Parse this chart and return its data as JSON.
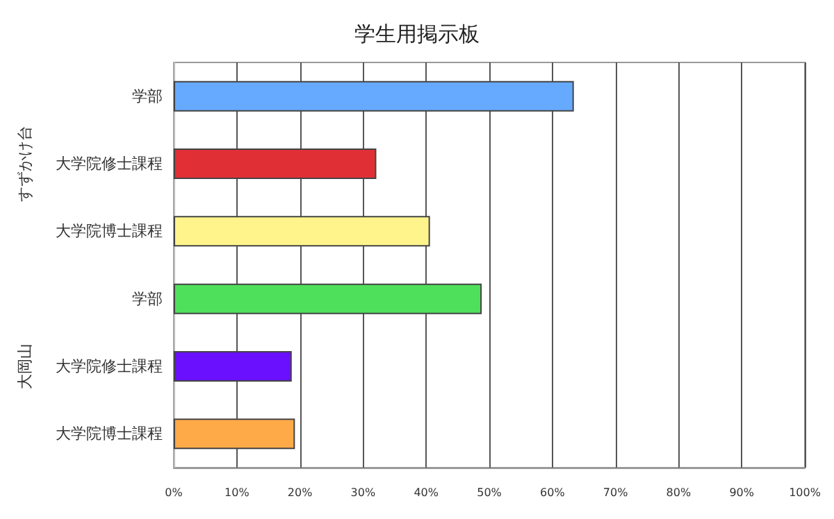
{
  "chart_data": {
    "type": "bar",
    "orientation": "horizontal",
    "title": "学生用掲示板",
    "categories": [
      "学部",
      "大学院修士課程",
      "大学院博士課程",
      "学部",
      "大学院修士課程",
      "大学院博士課程"
    ],
    "values": [
      63.4,
      32.1,
      40.6,
      48.8,
      18.7,
      19.2
    ],
    "colors": [
      "#66aaff",
      "#e03036",
      "#fff48c",
      "#4ee05a",
      "#6a10ff",
      "#ffaa48"
    ],
    "xlim": [
      0,
      100
    ],
    "xticks": [
      {
        "value": 0,
        "label": "0%"
      },
      {
        "value": 10,
        "label": "10%"
      },
      {
        "value": 20,
        "label": "20%"
      },
      {
        "value": 30,
        "label": "30%"
      },
      {
        "value": 40,
        "label": "40%"
      },
      {
        "value": 50,
        "label": "50%"
      },
      {
        "value": 60,
        "label": "60%"
      },
      {
        "value": 70,
        "label": "70%"
      },
      {
        "value": 80,
        "label": "80%"
      },
      {
        "value": 90,
        "label": "90%"
      },
      {
        "value": 100,
        "label": "100%"
      }
    ],
    "annotations": [
      "すずかけ台",
      "大岡山"
    ],
    "grid": "x"
  }
}
